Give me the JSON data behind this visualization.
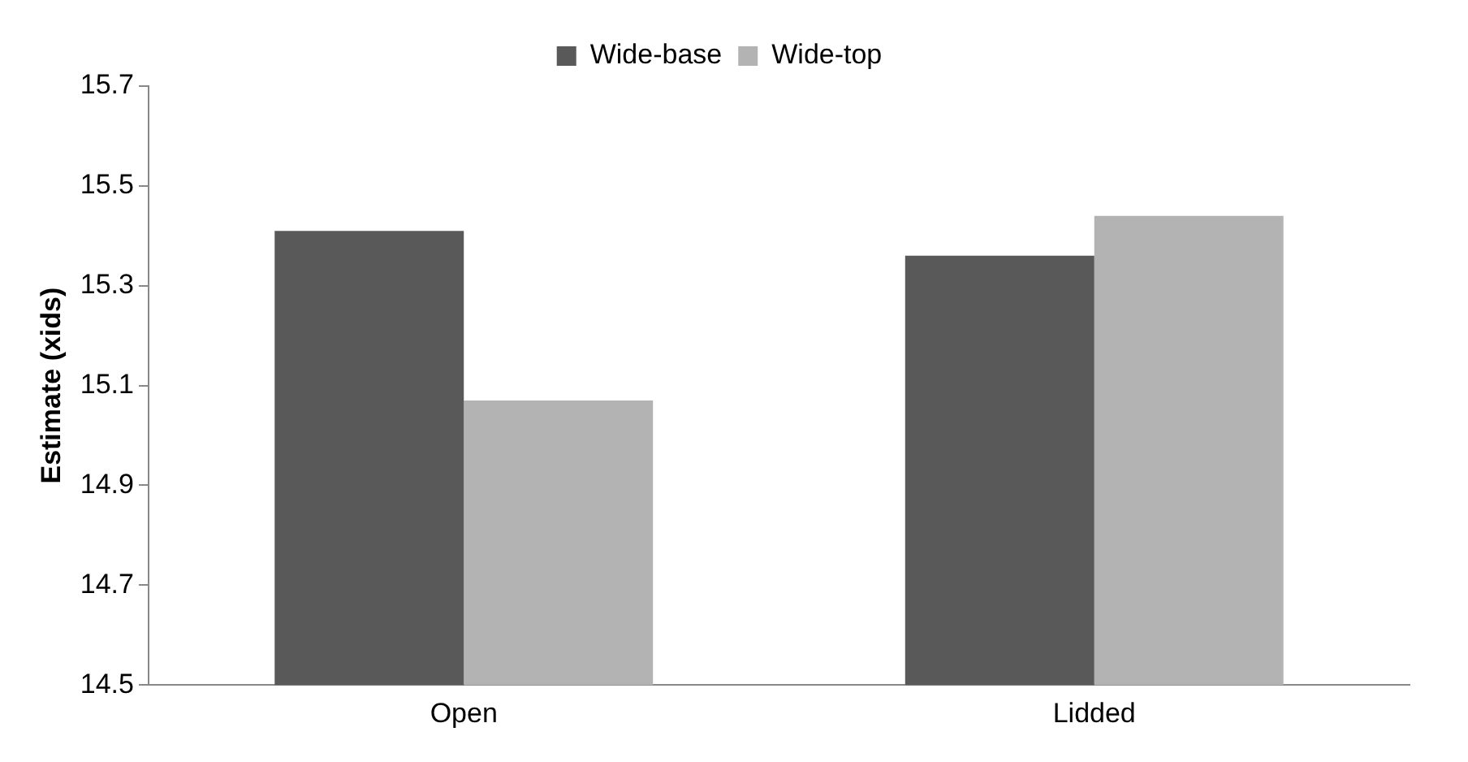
{
  "chart_data": {
    "type": "bar",
    "ylabel": "Estimate (xids)",
    "categories": [
      "Open",
      "Lidded"
    ],
    "series": [
      {
        "name": "Wide-base",
        "color": "#595959",
        "values": [
          15.41,
          15.36
        ]
      },
      {
        "name": "Wide-top",
        "color": "#b3b3b3",
        "values": [
          15.07,
          15.44
        ]
      }
    ],
    "ylim": [
      14.5,
      15.7
    ],
    "yticks": [
      14.5,
      14.7,
      14.9,
      15.1,
      15.3,
      15.5,
      15.7
    ],
    "grid": false,
    "legend": "top"
  }
}
